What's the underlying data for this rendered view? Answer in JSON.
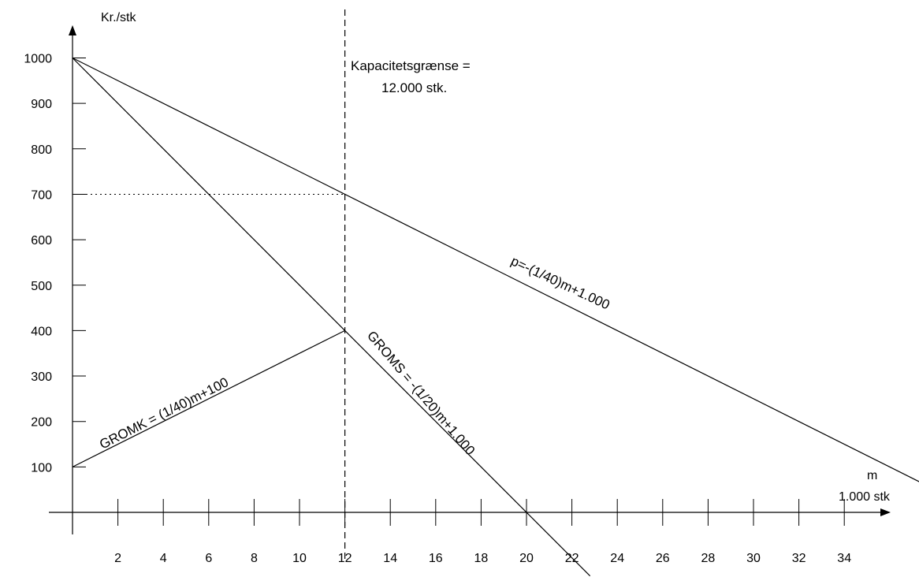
{
  "chart_data": {
    "type": "line",
    "ylabel": "Kr./stk",
    "xlabel_line1": "m",
    "xlabel_line2": "1.000 stk",
    "xlim": [
      0,
      36
    ],
    "ylim": [
      0,
      1000
    ],
    "x_ticks": [
      2,
      4,
      6,
      8,
      10,
      12,
      14,
      16,
      18,
      20,
      22,
      24,
      26,
      28,
      30,
      32,
      34
    ],
    "y_ticks": [
      100,
      200,
      300,
      400,
      500,
      600,
      700,
      800,
      900,
      1000
    ],
    "grid": false,
    "series": [
      {
        "name": "p=-(1/40)m+1.000",
        "x": [
          0,
          37.3
        ],
        "y": [
          1000,
          67.5
        ]
      },
      {
        "name": "GROMS = -(1/20)m+1.000",
        "x": [
          0,
          22.8
        ],
        "y": [
          1000,
          -140
        ]
      },
      {
        "name": "GROMK = (1/40)m+100",
        "x": [
          0,
          12
        ],
        "y": [
          100,
          400
        ]
      }
    ],
    "annotations": {
      "capacity_line1": "Kapacitetsgrænse =",
      "capacity_line2": "12.000 stk.",
      "capacity_x": 12,
      "price_at_capacity": 700
    }
  }
}
